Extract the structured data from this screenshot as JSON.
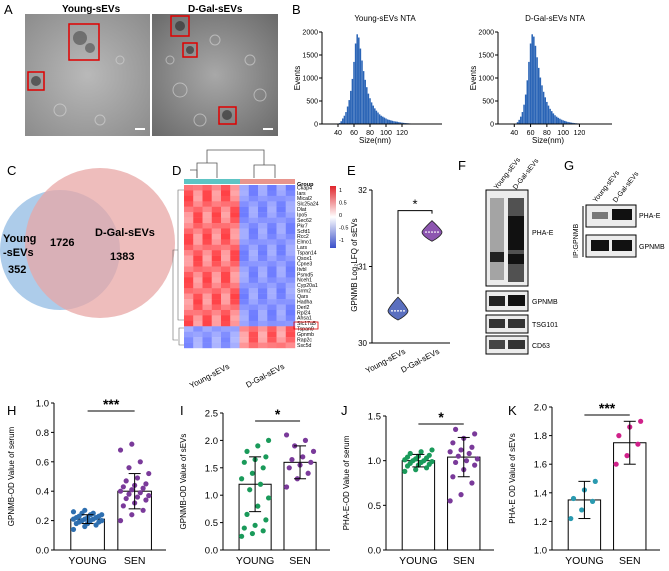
{
  "panels": {
    "A": {
      "letter": "A",
      "label_left": "Young-sEVs",
      "label_right": "D-Gal-sEVs"
    },
    "B": {
      "letter": "B"
    },
    "C": {
      "letter": "C",
      "left_label_line1": "Young",
      "left_label_line2": "-sEVs",
      "left_count": "352",
      "overlap": "1726",
      "right_label": "D-Gal-sEVs",
      "right_count": "1383"
    },
    "D": {
      "letter": "D",
      "legend_title": "Group",
      "legend_ticks": [
        "1",
        "0.5",
        "0",
        "-0.5",
        "-1"
      ],
      "genes": [
        "Ckap4",
        "Iars",
        "Mical2",
        "Slc25a24",
        "Dlat",
        "Ipo5",
        "Sec62",
        "Pkr7",
        "Scfd1",
        "Rcc2",
        "Elmo1",
        "Lars",
        "Tspan14",
        "Qsox1",
        "Cpne3",
        "Itvbl",
        "Psmd5",
        "Nceh1",
        "Cyp20a1",
        "Srrm2",
        "Qars",
        "Hadha",
        "Derl2",
        "Rpl24",
        "Ahsa1",
        "Slc17a5",
        "Tspan9",
        "Gpnmb",
        "Rap2c",
        "Ssc5d"
      ],
      "highlight_gene": "Gpnmb",
      "x_labels": [
        "Young-sEVs",
        "D-Gal-sEVs"
      ]
    },
    "E": {
      "letter": "E",
      "star": "*"
    },
    "F": {
      "letter": "F",
      "lane_labels": [
        "Young-sEVs",
        "D-Gal-sEVs"
      ],
      "bands": [
        "PHA-E",
        "GPNMB",
        "TSG101",
        "CD63"
      ]
    },
    "G": {
      "letter": "G",
      "lane_labels": [
        "Young-sEVs",
        "D-Gal-sEVs"
      ],
      "bands": [
        "PHA-E",
        "GPNMB"
      ],
      "side_label": "IP:GPNMB"
    },
    "H": {
      "letter": "H",
      "star": "***"
    },
    "I": {
      "letter": "I",
      "star": "*"
    },
    "J": {
      "letter": "J",
      "star": "*"
    },
    "K": {
      "letter": "K",
      "star": "***"
    }
  },
  "chart_data": [
    {
      "id": "B-left",
      "type": "bar",
      "title": "Young-sEVs NTA",
      "xlabel": "Size(nm)",
      "ylabel": "Events",
      "xlim": [
        20,
        170
      ],
      "ylim": [
        0,
        2000
      ],
      "xticks": [
        "40",
        "60",
        "80",
        "100",
        "120"
      ],
      "yticks": [
        "0",
        "500",
        "1000",
        "1500",
        "2000"
      ],
      "x": [
        42,
        44,
        46,
        48,
        50,
        52,
        54,
        56,
        58,
        60,
        62,
        64,
        66,
        68,
        70,
        72,
        74,
        76,
        78,
        80,
        82,
        84,
        86,
        88,
        90,
        92,
        94,
        96,
        98,
        100,
        102,
        104,
        106,
        108,
        110,
        112,
        114,
        116,
        118,
        120,
        122,
        124,
        126,
        128,
        130,
        132,
        134,
        136,
        138,
        140
      ],
      "values": [
        20,
        60,
        120,
        180,
        260,
        380,
        520,
        720,
        980,
        1350,
        1750,
        1950,
        1880,
        1640,
        1380,
        1150,
        960,
        800,
        660,
        560,
        470,
        400,
        340,
        290,
        250,
        210,
        180,
        160,
        140,
        120,
        100,
        90,
        80,
        70,
        60,
        55,
        50,
        40,
        35,
        30,
        25,
        20,
        18,
        15,
        12,
        10,
        8,
        6,
        5,
        4
      ]
    },
    {
      "id": "B-right",
      "type": "bar",
      "title": "D-Gal-sEVs NTA",
      "xlabel": "Size(nm)",
      "ylabel": "Events",
      "xlim": [
        20,
        160
      ],
      "ylim": [
        0,
        2000
      ],
      "xticks": [
        "40",
        "60",
        "80",
        "100",
        "120"
      ],
      "yticks": [
        "0",
        "500",
        "1000",
        "1500",
        "2000"
      ],
      "x": [
        42,
        44,
        46,
        48,
        50,
        52,
        54,
        56,
        58,
        60,
        62,
        64,
        66,
        68,
        70,
        72,
        74,
        76,
        78,
        80,
        82,
        84,
        86,
        88,
        90,
        92,
        94,
        96,
        98,
        100,
        102,
        104,
        106,
        108,
        110,
        112,
        114,
        116,
        118,
        120,
        122,
        124,
        126,
        128,
        130
      ],
      "values": [
        10,
        40,
        90,
        160,
        260,
        420,
        640,
        950,
        1350,
        1750,
        1950,
        1900,
        1700,
        1450,
        1220,
        1010,
        840,
        700,
        580,
        480,
        400,
        330,
        280,
        230,
        190,
        160,
        135,
        115,
        95,
        80,
        68,
        55,
        45,
        38,
        30,
        25,
        20,
        16,
        13,
        10,
        8,
        6,
        5,
        4,
        3
      ]
    },
    {
      "id": "E",
      "type": "violin",
      "ylabel": "GPNMB Log₂LFQ of sEVs",
      "categories": [
        "Young-sEVs",
        "D-Gal-sEVs"
      ],
      "ylim": [
        30,
        32
      ],
      "yticks": [
        "30",
        "31",
        "32"
      ],
      "values": [
        30.42,
        31.45
      ],
      "range_low": [
        30.3,
        31.33
      ],
      "range_high": [
        30.6,
        31.6
      ]
    },
    {
      "id": "H",
      "type": "bar",
      "ylabel": "GPNMB-OD Value of serum",
      "categories": [
        "YOUNG",
        "SEN"
      ],
      "ylim": [
        0,
        1.0
      ],
      "yticks": [
        "0.0",
        "0.2",
        "0.4",
        "0.6",
        "0.8",
        "1.0"
      ],
      "values": [
        0.21,
        0.4
      ],
      "sd": [
        0.03,
        0.12
      ],
      "points": [
        [
          0.14,
          0.16,
          0.17,
          0.18,
          0.18,
          0.19,
          0.19,
          0.2,
          0.2,
          0.2,
          0.21,
          0.21,
          0.21,
          0.22,
          0.22,
          0.22,
          0.23,
          0.23,
          0.24,
          0.24,
          0.25,
          0.25,
          0.26,
          0.27
        ],
        [
          0.2,
          0.24,
          0.27,
          0.3,
          0.32,
          0.34,
          0.35,
          0.36,
          0.37,
          0.38,
          0.39,
          0.4,
          0.41,
          0.42,
          0.43,
          0.44,
          0.45,
          0.47,
          0.49,
          0.52,
          0.56,
          0.6,
          0.68,
          0.72
        ]
      ],
      "colors": [
        "#2e6fb0",
        "#7a3a9a"
      ]
    },
    {
      "id": "I",
      "type": "bar",
      "ylabel": "GPNMB-OD Value of sEVs",
      "categories": [
        "YOUNG",
        "SEN"
      ],
      "ylim": [
        0,
        2.5
      ],
      "yticks": [
        "0.0",
        "0.5",
        "1.0",
        "1.5",
        "2.0",
        "2.5"
      ],
      "values": [
        1.2,
        1.6
      ],
      "sd": [
        0.5,
        0.3
      ],
      "points": [
        [
          0.25,
          0.3,
          0.35,
          0.4,
          0.45,
          0.55,
          0.65,
          0.8,
          0.95,
          1.1,
          1.2,
          1.3,
          1.4,
          1.5,
          1.6,
          1.65,
          1.7,
          1.8,
          1.9,
          2.0
        ],
        [
          1.15,
          1.3,
          1.4,
          1.5,
          1.55,
          1.6,
          1.65,
          1.7,
          1.8,
          1.9,
          2.0,
          2.1
        ]
      ],
      "colors": [
        "#1a9a5a",
        "#7a3a9a"
      ]
    },
    {
      "id": "J",
      "type": "bar",
      "ylabel": "PHA-E-OD Value of serum",
      "categories": [
        "YOUNG",
        "SEN"
      ],
      "ylim": [
        0,
        1.5
      ],
      "yticks": [
        "0.0",
        "0.5",
        "1.0",
        "1.5"
      ],
      "values": [
        1.0,
        1.04
      ],
      "sd": [
        0.07,
        0.22
      ],
      "points": [
        [
          0.88,
          0.9,
          0.92,
          0.94,
          0.95,
          0.96,
          0.97,
          0.98,
          0.99,
          1.0,
          1.0,
          1.01,
          1.02,
          1.03,
          1.04,
          1.05,
          1.06,
          1.08,
          1.1,
          1.12
        ],
        [
          0.55,
          0.62,
          0.75,
          0.82,
          0.9,
          0.95,
          0.98,
          1.0,
          1.02,
          1.05,
          1.08,
          1.1,
          1.12,
          1.15,
          1.2,
          1.25,
          1.3,
          1.35
        ]
      ],
      "colors": [
        "#1a9a5a",
        "#7a3a9a"
      ]
    },
    {
      "id": "K",
      "type": "bar",
      "ylabel": "PHA-E OD Value of sEVs",
      "categories": [
        "YOUNG",
        "SEN"
      ],
      "ylim": [
        1.0,
        2.0
      ],
      "yticks": [
        "1.0",
        "1.2",
        "1.4",
        "1.6",
        "1.8",
        "2.0"
      ],
      "values": [
        1.35,
        1.75
      ],
      "sd": [
        0.13,
        0.15
      ],
      "points": [
        [
          1.22,
          1.28,
          1.34,
          1.36,
          1.42,
          1.48
        ],
        [
          1.6,
          1.66,
          1.74,
          1.8,
          1.86,
          1.9
        ]
      ],
      "colors": [
        "#2a9ab0",
        "#d0218a"
      ]
    }
  ]
}
